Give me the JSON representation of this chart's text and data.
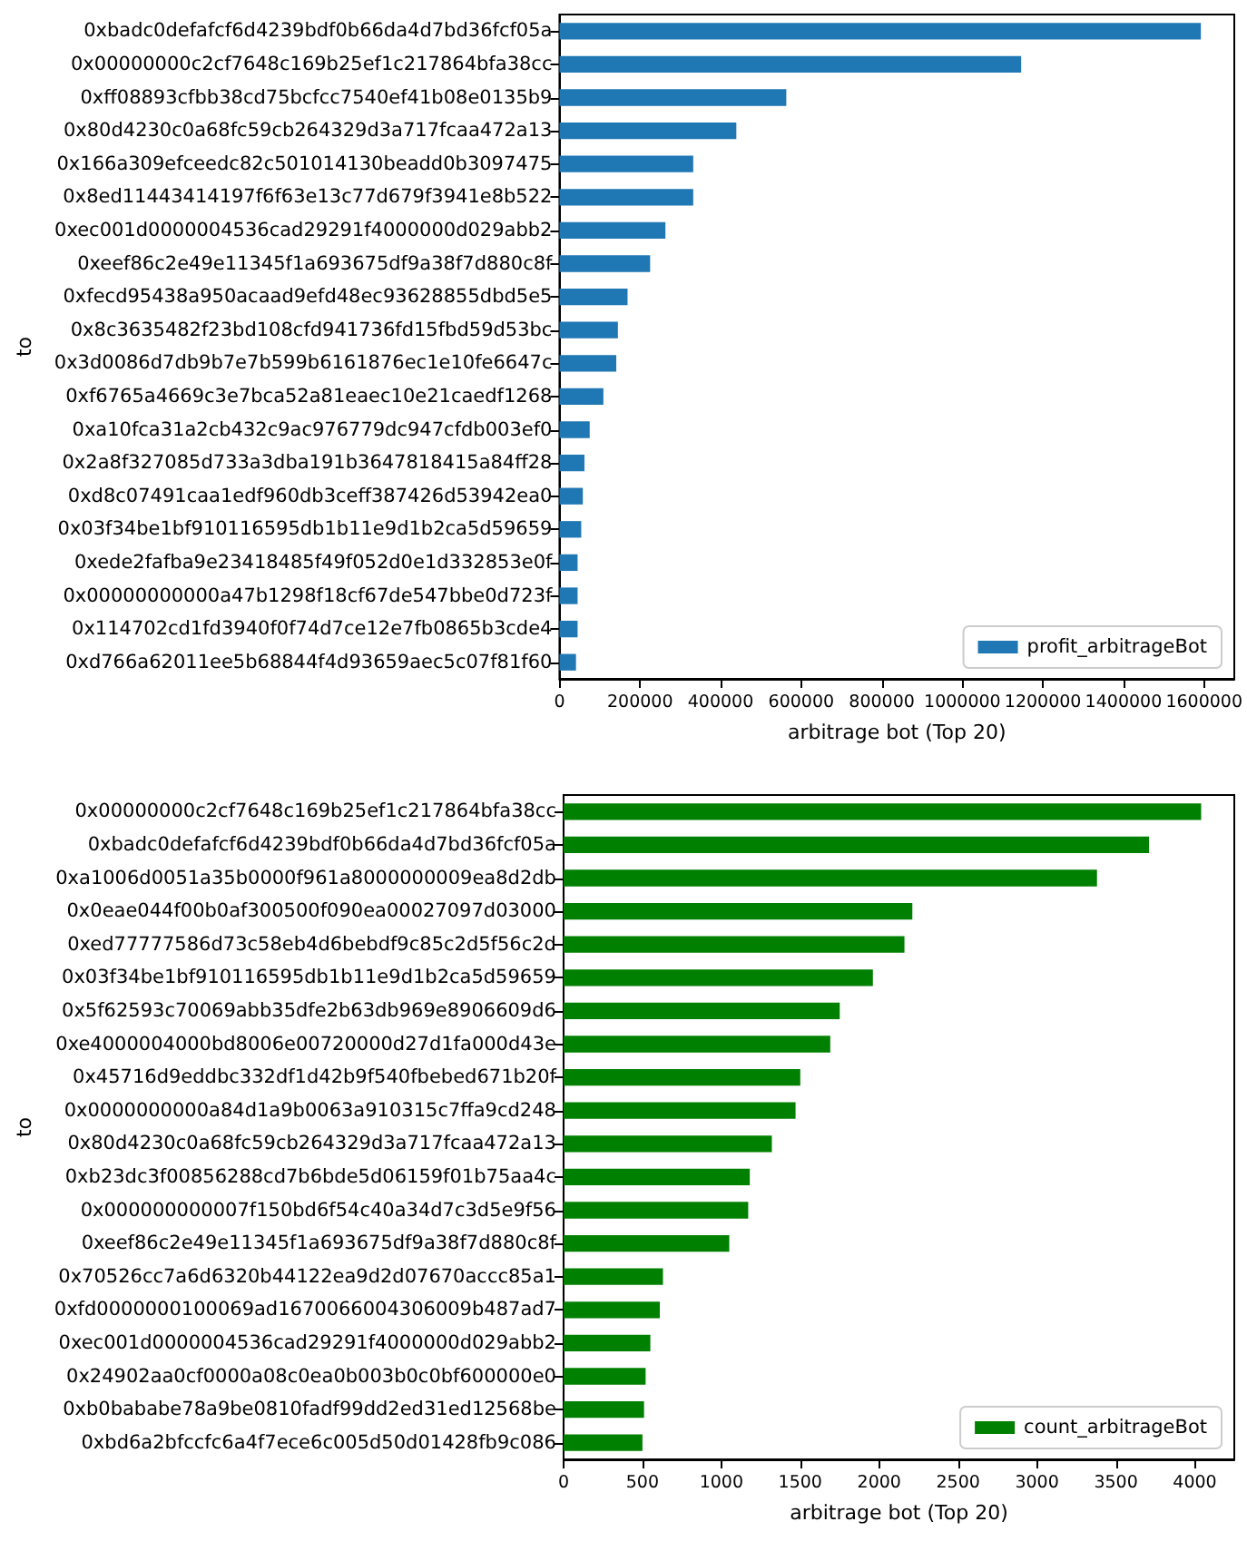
{
  "chart_data": [
    {
      "type": "bar",
      "orientation": "horizontal",
      "xlabel": "arbitrage bot (Top 20)",
      "ylabel": "to",
      "categories": [
        "0xbadc0defafcf6d4239bdf0b66da4d7bd36fcf05a",
        "0x00000000c2cf7648c169b25ef1c217864bfa38cc",
        "0xff08893cfbb38cd75bcfcc7540ef41b08e0135b9",
        "0x80d4230c0a68fc59cb264329d3a717fcaa472a13",
        "0x166a309efceedc82c501014130beadd0b3097475",
        "0x8ed11443414197f6f63e13c77d679f3941e8b522",
        "0xec001d0000004536cad29291f4000000d029abb2",
        "0xeef86c2e49e11345f1a693675df9a38f7d880c8f",
        "0xfecd95438a950acaad9efd48ec93628855dbd5e5",
        "0x8c3635482f23bd108cfd941736fd15fbd59d53bc",
        "0x3d0086d7db9b7e7b599b6161876ec1e10fe6647c",
        "0xf6765a4669c3e7bca52a81eaec10e21caedf1268",
        "0xa10fca31a2cb432c9ac976779dc947cfdb003ef0",
        "0x2a8f327085d733a3dba191b3647818415a84ff28",
        "0xd8c07491caa1edf960db3ceff387426d53942ea0",
        "0x03f34be1bf910116595db1b11e9d1b2ca5d59659",
        "0xede2fafba9e23418485f49f052d0e1d332853e0f",
        "0x00000000000a47b1298f18cf67de547bbe0d723f",
        "0x114702cd1fd3940f0f74d7ce12e7fb0865b3cde4",
        "0xd766a62011ee5b68844f4d93659aec5c07f81f60"
      ],
      "series": [
        {
          "name": "profit_arbitrageBot",
          "color": "#1f77b4",
          "values": [
            1592000,
            1146000,
            563000,
            439000,
            332000,
            332000,
            263000,
            225000,
            169000,
            145000,
            141000,
            109000,
            75000,
            62000,
            58000,
            54000,
            45000,
            45000,
            45000,
            41000
          ]
        }
      ],
      "xlim": [
        0,
        1675000
      ],
      "xticks": [
        0,
        200000,
        400000,
        600000,
        800000,
        1000000,
        1200000,
        1400000,
        1600000
      ],
      "legend": "bottom right",
      "grid": false
    },
    {
      "type": "bar",
      "orientation": "horizontal",
      "xlabel": "arbitrage bot (Top 20)",
      "ylabel": "to",
      "categories": [
        "0x00000000c2cf7648c169b25ef1c217864bfa38cc",
        "0xbadc0defafcf6d4239bdf0b66da4d7bd36fcf05a",
        "0xa1006d0051a35b0000f961a8000000009ea8d2db",
        "0x0eae044f00b0af300500f090ea00027097d03000",
        "0xed77777586d73c58eb4d6bebdf9c85c2d5f56c2d",
        "0x03f34be1bf910116595db1b11e9d1b2ca5d59659",
        "0x5f62593c70069abb35dfe2b63db969e8906609d6",
        "0xe4000004000bd8006e00720000d27d1fa000d43e",
        "0x45716d9eddbc332df1d42b9f540fbebed671b20f",
        "0x0000000000a84d1a9b0063a910315c7ffa9cd248",
        "0x80d4230c0a68fc59cb264329d3a717fcaa472a13",
        "0xb23dc3f00856288cd7b6bde5d06159f01b75aa4c",
        "0x000000000007f150bd6f54c40a34d7c3d5e9f56",
        "0xeef86c2e49e11345f1a693675df9a38f7d880c8f",
        "0x70526cc7a6d6320b44122ea9d2d07670accc85a1",
        "0xfd0000000100069ad1670066004306009b487ad7",
        "0xec001d0000004536cad29291f4000000d029abb2",
        "0x24902aa0cf0000a08c0ea0b003b0c0bf600000e0",
        "0xb0bababe78a9be0810fadf99dd2ed31ed12568be",
        "0xbd6a2bfccfc6a4f7ece6c005d50d01428fb9c086"
      ],
      "series": [
        {
          "name": "count_arbitrageBot",
          "color": "#008000",
          "values": [
            4040,
            3710,
            3380,
            2210,
            2160,
            1960,
            1750,
            1690,
            1500,
            1470,
            1320,
            1180,
            1170,
            1050,
            630,
            610,
            550,
            520,
            510,
            500
          ]
        }
      ],
      "xlim": [
        0,
        4250
      ],
      "xticks": [
        0,
        500,
        1000,
        1500,
        2000,
        2500,
        3000,
        3500,
        4000
      ],
      "legend": "bottom right",
      "grid": false
    }
  ]
}
